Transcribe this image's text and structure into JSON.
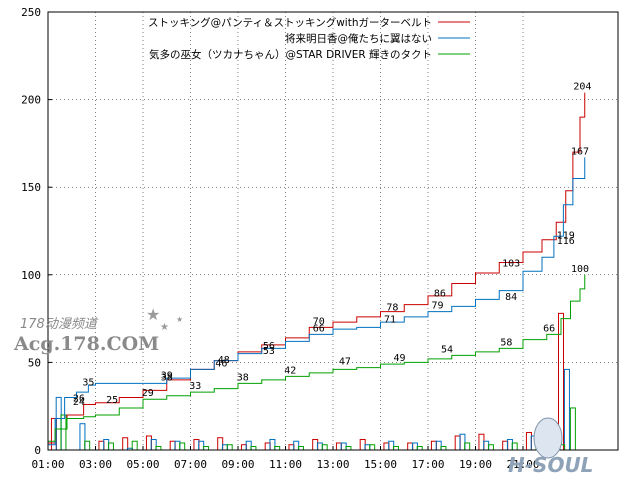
{
  "chart_data": {
    "type": "line",
    "title": "",
    "xlabel": "",
    "ylabel": "",
    "ylim": [
      0,
      250
    ],
    "xlim": [
      0,
      24
    ],
    "y_ticks": [
      0,
      50,
      100,
      150,
      200,
      250
    ],
    "x_tick_labels": [
      "01:00",
      "03:00",
      "05:00",
      "07:00",
      "09:00",
      "11:00",
      "13:00",
      "15:00",
      "17:00",
      "19:00",
      "21:00"
    ],
    "x_tick_values": [
      0,
      2,
      4,
      6,
      8,
      10,
      12,
      14,
      16,
      18,
      20
    ],
    "grid": true,
    "legend_position": "top-right",
    "series": [
      {
        "name": "ストッキング@パンティ＆ストッキングwithガーターベルト",
        "color": "#cc0000",
        "points": [
          [
            0,
            4
          ],
          [
            0.3,
            12
          ],
          [
            0.8,
            20
          ],
          [
            1.5,
            26
          ],
          [
            2.0,
            27
          ],
          [
            3,
            30
          ],
          [
            4,
            34
          ],
          [
            5,
            40
          ],
          [
            6,
            46
          ],
          [
            7,
            51
          ],
          [
            8,
            56
          ],
          [
            9,
            60
          ],
          [
            10,
            64
          ],
          [
            11,
            70
          ],
          [
            12,
            73
          ],
          [
            13,
            76
          ],
          [
            14,
            79
          ],
          [
            15,
            83
          ],
          [
            16,
            88
          ],
          [
            17,
            95
          ],
          [
            18,
            101
          ],
          [
            19,
            107
          ],
          [
            20,
            113
          ],
          [
            20.8,
            120
          ],
          [
            21.4,
            130
          ],
          [
            21.8,
            148
          ],
          [
            22.1,
            170
          ],
          [
            22.4,
            190
          ],
          [
            22.6,
            204
          ]
        ],
        "labels": [
          [
            1.3,
            26
          ],
          [
            5,
            39
          ],
          [
            7.3,
            46
          ],
          [
            9.3,
            56
          ],
          [
            11.4,
            70
          ],
          [
            14.5,
            78
          ],
          [
            16.5,
            86
          ],
          [
            19.5,
            103
          ],
          [
            21.8,
            119
          ],
          [
            22.5,
            204
          ]
        ]
      },
      {
        "name": "将来明日香@俺たちに翼はない",
        "color": "#0070c0",
        "points": [
          [
            0,
            3
          ],
          [
            0.3,
            18
          ],
          [
            0.7,
            30
          ],
          [
            1.2,
            33
          ],
          [
            1.7,
            37
          ],
          [
            2.0,
            38
          ],
          [
            4,
            38
          ],
          [
            5,
            41
          ],
          [
            6,
            46
          ],
          [
            7,
            51
          ],
          [
            8,
            55
          ],
          [
            9,
            58
          ],
          [
            10,
            62
          ],
          [
            11,
            66
          ],
          [
            12,
            69
          ],
          [
            13,
            70
          ],
          [
            14,
            73
          ],
          [
            15,
            76
          ],
          [
            16,
            79
          ],
          [
            17,
            82
          ],
          [
            18,
            86
          ],
          [
            19,
            91
          ],
          [
            20,
            102
          ],
          [
            20.8,
            110
          ],
          [
            21.3,
            122
          ],
          [
            21.7,
            140
          ],
          [
            22.1,
            155
          ],
          [
            22.6,
            167
          ]
        ],
        "labels": [
          [
            1.7,
            35
          ],
          [
            2.7,
            25
          ],
          [
            5,
            38
          ],
          [
            7.4,
            48
          ],
          [
            9.3,
            53
          ],
          [
            11.4,
            66
          ],
          [
            14.4,
            71
          ],
          [
            16.4,
            79
          ],
          [
            19.5,
            84
          ],
          [
            21.8,
            116
          ],
          [
            22.4,
            167
          ]
        ]
      },
      {
        "name": "気多の巫女（ツカナちゃん）@STAR DRIVER 輝きのタクト",
        "color": "#00a000",
        "points": [
          [
            0,
            5
          ],
          [
            0.3,
            12
          ],
          [
            0.8,
            18
          ],
          [
            1.5,
            19
          ],
          [
            2.0,
            20
          ],
          [
            3,
            24
          ],
          [
            4,
            29
          ],
          [
            5,
            31
          ],
          [
            6,
            33
          ],
          [
            7,
            35
          ],
          [
            8,
            38
          ],
          [
            9,
            40
          ],
          [
            10,
            42
          ],
          [
            11,
            44
          ],
          [
            12,
            46
          ],
          [
            13,
            47
          ],
          [
            14,
            49
          ],
          [
            15,
            50
          ],
          [
            16,
            52
          ],
          [
            17,
            54
          ],
          [
            18,
            56
          ],
          [
            19,
            58
          ],
          [
            20,
            63
          ],
          [
            21,
            66
          ],
          [
            21.6,
            75
          ],
          [
            22.0,
            85
          ],
          [
            22.4,
            92
          ],
          [
            22.6,
            100
          ]
        ],
        "labels": [
          [
            1.3,
            24
          ],
          [
            4.2,
            29
          ],
          [
            6.2,
            33
          ],
          [
            8.2,
            38
          ],
          [
            10.2,
            42
          ],
          [
            12.5,
            47
          ],
          [
            14.8,
            49
          ],
          [
            16.8,
            54
          ],
          [
            19.3,
            58
          ],
          [
            21.1,
            66
          ],
          [
            22.4,
            100
          ]
        ]
      }
    ],
    "bars": [
      {
        "series": 0,
        "values": [
          [
            0.25,
            18
          ],
          [
            1.25,
            0
          ],
          [
            2.25,
            5
          ],
          [
            3.25,
            7
          ],
          [
            4.25,
            8
          ],
          [
            5.25,
            5
          ],
          [
            6.25,
            6
          ],
          [
            7.25,
            7
          ],
          [
            8.25,
            3
          ],
          [
            9.25,
            4
          ],
          [
            10.25,
            3
          ],
          [
            11.25,
            6
          ],
          [
            12.25,
            4
          ],
          [
            13.25,
            6
          ],
          [
            14.25,
            4
          ],
          [
            15.25,
            4
          ],
          [
            16.25,
            5
          ],
          [
            17.25,
            8
          ],
          [
            18.25,
            9
          ],
          [
            19.25,
            5
          ],
          [
            20.25,
            10
          ],
          [
            21.25,
            10
          ],
          [
            21.6,
            78
          ]
        ]
      },
      {
        "series": 1,
        "values": [
          [
            0.45,
            30
          ],
          [
            1.45,
            15
          ],
          [
            2.45,
            6
          ],
          [
            3.45,
            1
          ],
          [
            4.45,
            6
          ],
          [
            5.45,
            5
          ],
          [
            6.45,
            5
          ],
          [
            7.45,
            3
          ],
          [
            8.45,
            5
          ],
          [
            9.45,
            6
          ],
          [
            10.45,
            5
          ],
          [
            11.45,
            4
          ],
          [
            12.45,
            4
          ],
          [
            13.45,
            3
          ],
          [
            14.45,
            5
          ],
          [
            15.45,
            4
          ],
          [
            16.45,
            5
          ],
          [
            17.45,
            9
          ],
          [
            18.45,
            5
          ],
          [
            19.45,
            6
          ],
          [
            20.45,
            8
          ],
          [
            21.45,
            7
          ],
          [
            21.85,
            46
          ]
        ]
      },
      {
        "series": 2,
        "values": [
          [
            0.65,
            20
          ],
          [
            1.65,
            5
          ],
          [
            2.65,
            4
          ],
          [
            3.65,
            5
          ],
          [
            4.65,
            2
          ],
          [
            5.65,
            4
          ],
          [
            6.65,
            2
          ],
          [
            7.65,
            3
          ],
          [
            8.65,
            2
          ],
          [
            9.65,
            2
          ],
          [
            10.65,
            2
          ],
          [
            11.65,
            3
          ],
          [
            12.65,
            2
          ],
          [
            13.65,
            3
          ],
          [
            14.65,
            2
          ],
          [
            15.65,
            2
          ],
          [
            16.65,
            2
          ],
          [
            17.65,
            4
          ],
          [
            18.65,
            3
          ],
          [
            19.65,
            4
          ],
          [
            20.65,
            3
          ],
          [
            21.65,
            3
          ],
          [
            22.1,
            24
          ]
        ]
      }
    ]
  },
  "watermark": {
    "line1": "178动漫频道",
    "line2": "Acg.178.COM",
    "line3": "H-SOUL"
  }
}
